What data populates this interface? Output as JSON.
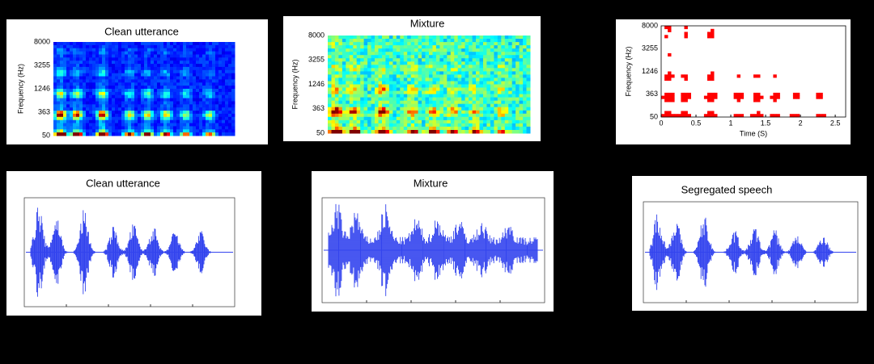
{
  "panels": [
    {
      "title": "Clean utterance",
      "y_label": "Frequency (Hz)",
      "y_ticks": [
        8000,
        3255,
        1246,
        363,
        50
      ]
    },
    {
      "title": "Mixture",
      "y_label": "Frequency (Hz)",
      "y_ticks": [
        8000,
        3255,
        1246,
        363,
        50
      ]
    },
    {
      "y_label": "Frequency (Hz)",
      "y_ticks": [
        8000,
        3255,
        1246,
        363,
        50
      ],
      "x_label": "Time (S)",
      "x_ticks": [
        0,
        0.5,
        1,
        1.5,
        2,
        2.5
      ]
    },
    {
      "title": "Clean utterance"
    },
    {
      "title": "Mixture"
    },
    {
      "title": "Segregated speech"
    }
  ]
}
